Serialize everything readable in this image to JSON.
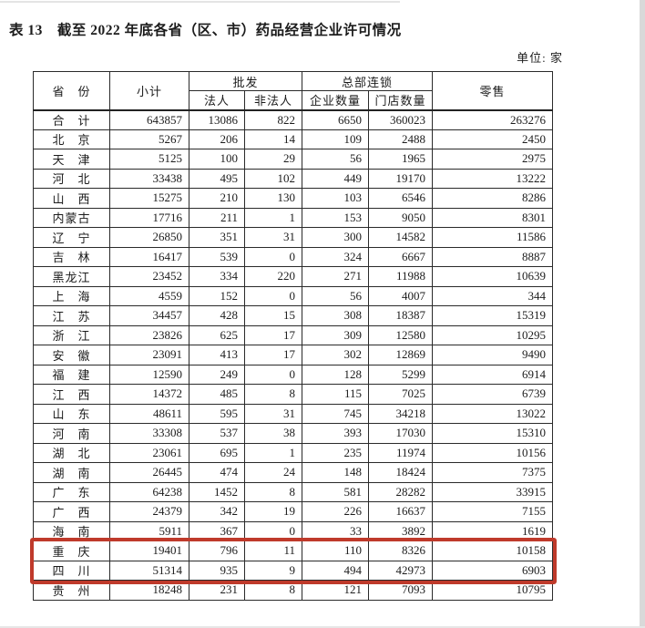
{
  "page": {
    "title": "表 13　截至 2022 年底各省（区、市）药品经营企业许可情况",
    "unit_label": "单位: 家"
  },
  "table": {
    "header": {
      "province": "省　份",
      "subtotal": "小计",
      "wholesale_group": "批发",
      "wholesale_legal": "法人",
      "wholesale_nonlegal": "非法人",
      "chain_group": "总部连锁",
      "chain_enterprises": "企业数量",
      "chain_stores": "门店数量",
      "retail": "零售"
    },
    "rows": [
      {
        "province": "合　计",
        "values": [
          643857,
          13086,
          822,
          6650,
          360023,
          263276
        ],
        "highlight": false
      },
      {
        "province": "北　京",
        "values": [
          5267,
          206,
          14,
          109,
          2488,
          2450
        ],
        "highlight": false
      },
      {
        "province": "天　津",
        "values": [
          5125,
          100,
          29,
          56,
          1965,
          2975
        ],
        "highlight": false
      },
      {
        "province": "河　北",
        "values": [
          33438,
          495,
          102,
          449,
          19170,
          13222
        ],
        "highlight": false
      },
      {
        "province": "山　西",
        "values": [
          15275,
          210,
          130,
          103,
          6546,
          8286
        ],
        "highlight": false
      },
      {
        "province": "内蒙古",
        "values": [
          17716,
          211,
          1,
          153,
          9050,
          8301
        ],
        "highlight": false
      },
      {
        "province": "辽　宁",
        "values": [
          26850,
          351,
          31,
          300,
          14582,
          11586
        ],
        "highlight": false
      },
      {
        "province": "吉　林",
        "values": [
          16417,
          539,
          0,
          324,
          6667,
          8887
        ],
        "highlight": false
      },
      {
        "province": "黑龙江",
        "values": [
          23452,
          334,
          220,
          271,
          11988,
          10639
        ],
        "highlight": false
      },
      {
        "province": "上　海",
        "values": [
          4559,
          152,
          0,
          56,
          4007,
          344
        ],
        "highlight": false
      },
      {
        "province": "江　苏",
        "values": [
          34457,
          428,
          15,
          308,
          18387,
          15319
        ],
        "highlight": false
      },
      {
        "province": "浙　江",
        "values": [
          23826,
          625,
          17,
          309,
          12580,
          10295
        ],
        "highlight": false
      },
      {
        "province": "安　徽",
        "values": [
          23091,
          413,
          17,
          302,
          12869,
          9490
        ],
        "highlight": false
      },
      {
        "province": "福　建",
        "values": [
          12590,
          249,
          0,
          128,
          5299,
          6914
        ],
        "highlight": false
      },
      {
        "province": "江　西",
        "values": [
          14372,
          485,
          8,
          115,
          7025,
          6739
        ],
        "highlight": false
      },
      {
        "province": "山　东",
        "values": [
          48611,
          595,
          31,
          745,
          34218,
          13022
        ],
        "highlight": false
      },
      {
        "province": "河　南",
        "values": [
          33308,
          537,
          38,
          393,
          17030,
          15310
        ],
        "highlight": false
      },
      {
        "province": "湖　北",
        "values": [
          23061,
          695,
          1,
          235,
          11974,
          10156
        ],
        "highlight": false
      },
      {
        "province": "湖　南",
        "values": [
          26445,
          474,
          24,
          148,
          18424,
          7375
        ],
        "highlight": false
      },
      {
        "province": "广　东",
        "values": [
          64238,
          1452,
          8,
          581,
          28282,
          33915
        ],
        "highlight": false
      },
      {
        "province": "广　西",
        "values": [
          24379,
          342,
          19,
          226,
          16637,
          7155
        ],
        "highlight": false
      },
      {
        "province": "海　南",
        "values": [
          5911,
          367,
          0,
          33,
          3892,
          1619
        ],
        "highlight": false
      },
      {
        "province": "重　庆",
        "values": [
          19401,
          796,
          11,
          110,
          8326,
          10158
        ],
        "highlight": true
      },
      {
        "province": "四　川",
        "values": [
          51314,
          935,
          9,
          494,
          42973,
          6903
        ],
        "highlight": true
      },
      {
        "province": "贵　州",
        "values": [
          18248,
          231,
          8,
          121,
          7093,
          10795
        ],
        "highlight": false
      }
    ]
  },
  "highlight": {
    "color": "#bf3a2b",
    "rows": [
      "重庆",
      "四川"
    ]
  }
}
